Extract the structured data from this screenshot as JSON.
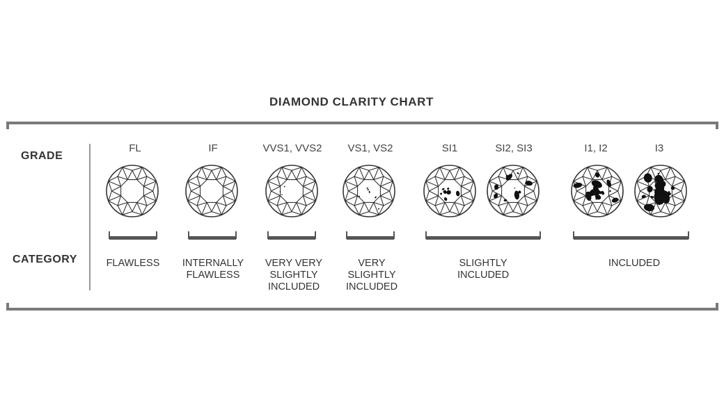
{
  "title": "DIAMOND CLARITY CHART",
  "row_labels": {
    "grade": "GRADE",
    "category": "CATEGORY"
  },
  "grades": [
    {
      "label": "FL",
      "inclusion_level": 0
    },
    {
      "label": "IF",
      "inclusion_level": 0
    },
    {
      "label": "VVS1, VVS2",
      "inclusion_level": 1
    },
    {
      "label": "VS1, VS2",
      "inclusion_level": 2
    },
    {
      "label": "SI1",
      "inclusion_level": 3
    },
    {
      "label": "SI2, SI3",
      "inclusion_level": 4
    },
    {
      "label": "I1, I2",
      "inclusion_level": 5
    },
    {
      "label": "I3",
      "inclusion_level": 6
    }
  ],
  "categories": [
    {
      "label": "FLAWLESS"
    },
    {
      "label": "INTERNALLY\nFLAWLESS"
    },
    {
      "label": "VERY VERY\nSLIGHTLY\nINCLUDED"
    },
    {
      "label": "VERY\nSLIGHTLY\nINCLUDED"
    },
    {
      "label": "SLIGHTLY\nINCLUDED"
    },
    {
      "label": "INCLUDED"
    }
  ],
  "colors": {
    "rule": "#7a7a7a",
    "bracket": "#555555",
    "outline": "#333333",
    "inclusion": "#111111"
  }
}
